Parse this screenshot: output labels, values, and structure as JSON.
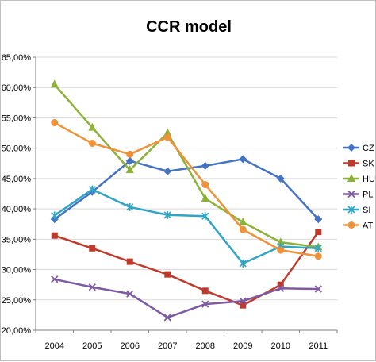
{
  "chart_data": {
    "type": "line",
    "title": "CCR model",
    "xlabel": "",
    "ylabel": "",
    "x": [
      "2004",
      "2005",
      "2006",
      "2007",
      "2008",
      "2009",
      "2010",
      "2011"
    ],
    "ylim": [
      0.2,
      0.65
    ],
    "yticks": [
      "20,00%",
      "25,00%",
      "30,00%",
      "35,00%",
      "40,00%",
      "45,00%",
      "50,00%",
      "55,00%",
      "60,00%",
      "65,00%"
    ],
    "grid": true,
    "legend": "right",
    "series": [
      {
        "name": "CZ",
        "color": "#4472C4",
        "marker": "diamond",
        "values": [
          0.383,
          0.428,
          0.479,
          0.462,
          0.471,
          0.482,
          0.45,
          0.383
        ]
      },
      {
        "name": "SK",
        "color": "#C0392B",
        "marker": "square",
        "values": [
          0.356,
          0.335,
          0.313,
          0.292,
          0.265,
          0.241,
          0.275,
          0.362
        ]
      },
      {
        "name": "HU",
        "color": "#8CB23A",
        "marker": "triangle",
        "values": [
          0.605,
          0.534,
          0.464,
          0.525,
          0.417,
          0.378,
          0.345,
          0.337
        ]
      },
      {
        "name": "PL",
        "color": "#7E5AA2",
        "marker": "x",
        "values": [
          0.284,
          0.271,
          0.26,
          0.221,
          0.243,
          0.248,
          0.269,
          0.268
        ]
      },
      {
        "name": "SI",
        "color": "#31A6C4",
        "marker": "star",
        "values": [
          0.389,
          0.432,
          0.403,
          0.39,
          0.388,
          0.31,
          0.338,
          0.335
        ]
      },
      {
        "name": "AT",
        "color": "#F0923A",
        "marker": "circle",
        "values": [
          0.542,
          0.508,
          0.49,
          0.518,
          0.44,
          0.366,
          0.332,
          0.322
        ]
      }
    ]
  }
}
